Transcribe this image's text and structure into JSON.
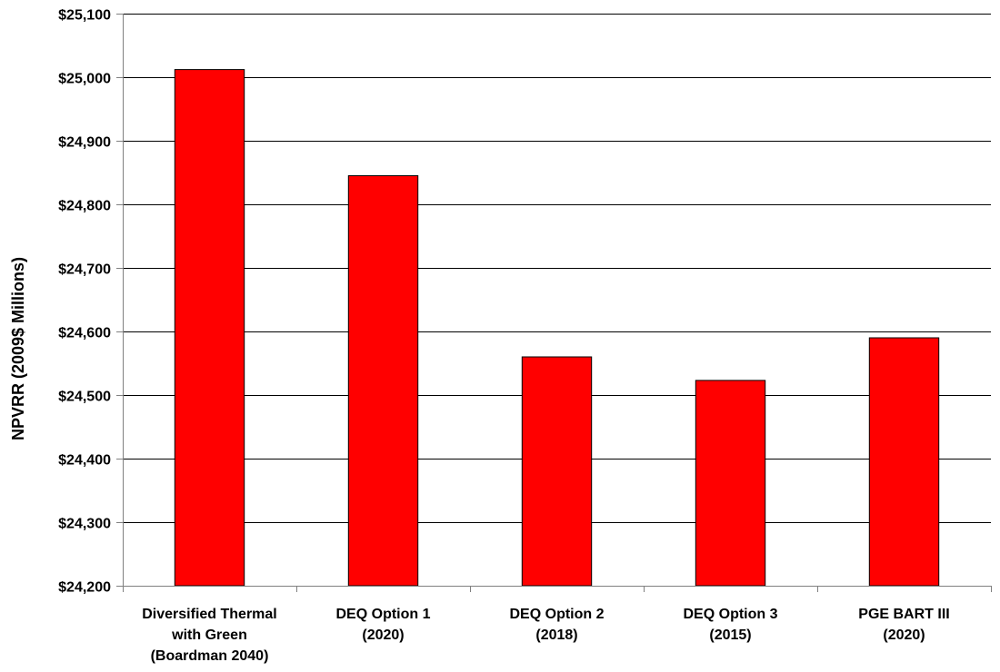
{
  "chart_data": {
    "type": "bar",
    "title": "",
    "xlabel": "",
    "ylabel": "NPVRR (2009$ Millions)",
    "categories": [
      [
        "Diversified Thermal",
        "with Green",
        "(Boardman 2040)"
      ],
      [
        "DEQ Option 1",
        "(2020)"
      ],
      [
        "DEQ Option 2",
        "(2018)"
      ],
      [
        "DEQ Option 3",
        "(2015)"
      ],
      [
        "PGE BART III",
        "(2020)"
      ]
    ],
    "values": [
      25012,
      24845,
      24560,
      24523,
      24590
    ],
    "ylim": [
      24200,
      25100
    ],
    "yticks": [
      24200,
      24300,
      24400,
      24500,
      24600,
      24700,
      24800,
      24900,
      25000,
      25100
    ],
    "ytick_labels": [
      "$24,200",
      "$24,300",
      "$24,400",
      "$24,500",
      "$24,600",
      "$24,700",
      "$24,800",
      "$24,900",
      "$25,000",
      "$25,100"
    ],
    "grid": true,
    "legend": "none",
    "bar_color": "#ff0000",
    "bar_edge_color": "#000000",
    "axis_color": "#808080",
    "grid_color": "#000000"
  }
}
